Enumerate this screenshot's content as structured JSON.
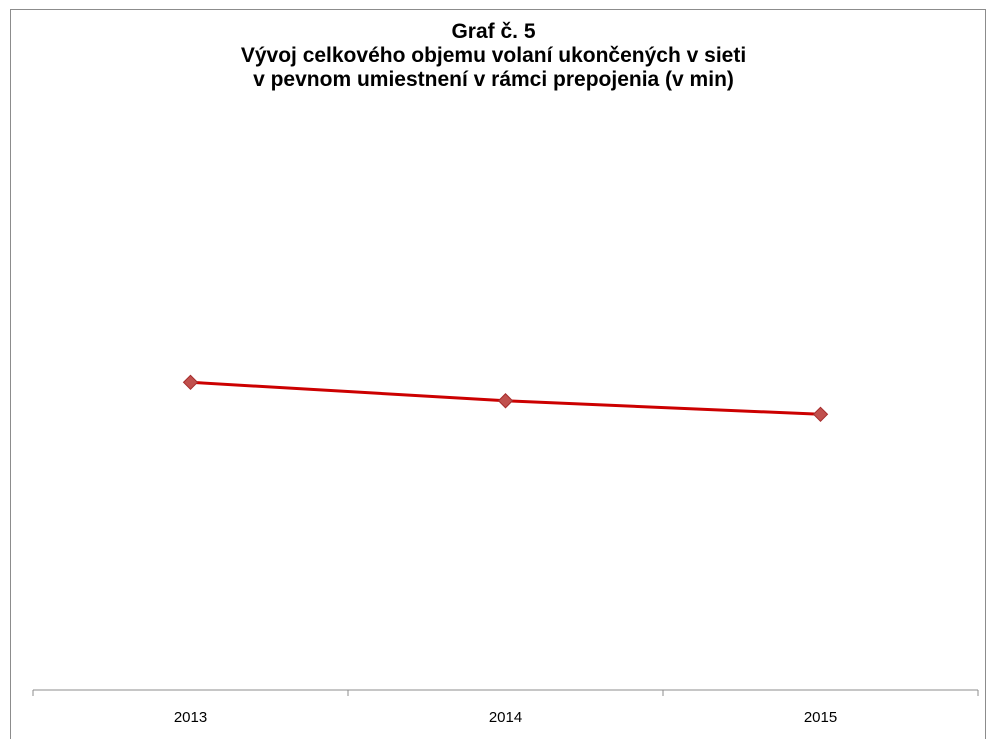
{
  "chart_data": {
    "type": "line",
    "title_lines": [
      "Graf č. 5",
      "Vývoj celkového objemu volaní ukončených v sieti",
      "v pevnom umiestnení v rámci prepojenia (v min)"
    ],
    "categories": [
      "2013",
      "2014",
      "2015"
    ],
    "series": [
      {
        "values": [
          100,
          94,
          89.6
        ],
        "color": "#cc0000",
        "marker": "diamond",
        "marker_fill": "#c0504d"
      }
    ],
    "ylim": [
      0,
      208
    ],
    "grid": false,
    "legend": "none",
    "y_axis_visible": false
  }
}
